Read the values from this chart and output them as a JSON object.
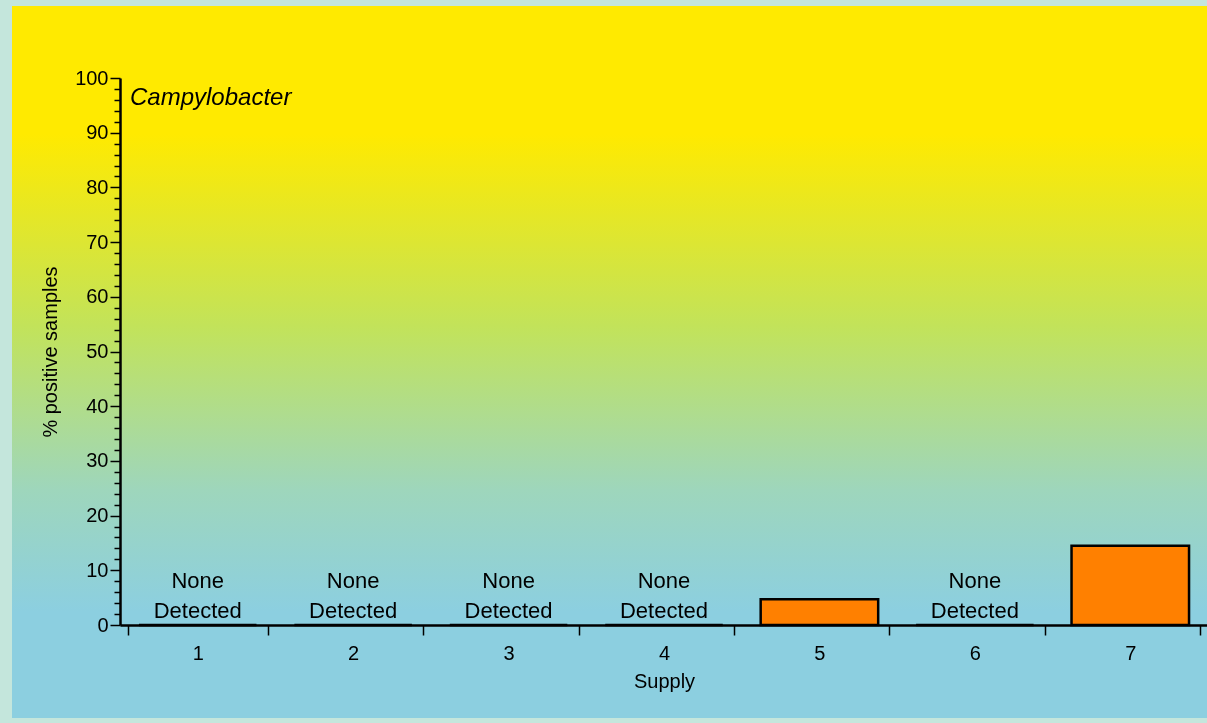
{
  "chart_data": {
    "type": "bar",
    "title": "Campylobacter",
    "xlabel": "Supply",
    "ylabel": "% positive samples",
    "categories": [
      "1",
      "2",
      "3",
      "4",
      "5",
      "6",
      "7"
    ],
    "values": [
      0,
      0,
      0,
      0,
      4.7,
      0,
      14.5
    ],
    "color": "#ff8000",
    "ylim": [
      0,
      100
    ],
    "yticks": [
      0,
      {
        "value": 2,
        "label": null
      },
      {
        "value": 4,
        "label": null
      },
      {
        "value": 6,
        "label": null
      },
      {
        "value": 8,
        "label": null
      },
      10,
      {
        "value": 12,
        "label": null
      },
      {
        "value": 14,
        "label": null
      },
      {
        "value": 16,
        "label": null
      },
      {
        "value": 18,
        "label": null
      },
      20,
      {
        "value": 22,
        "label": null
      },
      {
        "value": 24,
        "label": null
      },
      {
        "value": 26,
        "label": null
      },
      {
        "value": 28,
        "label": null
      },
      30,
      {
        "value": 32,
        "label": null
      },
      {
        "value": 34,
        "label": null
      },
      {
        "value": 36,
        "label": null
      },
      {
        "value": 38,
        "label": null
      },
      40,
      {
        "value": 42,
        "label": null
      },
      {
        "value": 44,
        "label": null
      },
      {
        "value": 46,
        "label": null
      },
      {
        "value": 48,
        "label": null
      },
      50,
      {
        "value": 52,
        "label": null
      },
      {
        "value": 54,
        "label": null
      },
      {
        "value": 56,
        "label": null
      },
      {
        "value": 58,
        "label": null
      },
      60,
      {
        "value": 62,
        "label": null
      },
      {
        "value": 64,
        "label": null
      },
      {
        "value": 66,
        "label": null
      },
      {
        "value": 68,
        "label": null
      },
      70,
      {
        "value": 72,
        "label": null
      },
      {
        "value": 74,
        "label": null
      },
      {
        "value": 76,
        "label": null
      },
      {
        "value": 78,
        "label": null
      },
      80,
      {
        "value": 82,
        "label": null
      },
      {
        "value": 84,
        "label": null
      },
      {
        "value": 86,
        "label": null
      },
      {
        "value": 88,
        "label": null
      },
      90,
      {
        "value": 92,
        "label": null
      },
      {
        "value": 94,
        "label": null
      },
      {
        "value": 96,
        "label": null
      },
      {
        "value": 98,
        "label": null
      },
      100
    ],
    "annotations": [
      {
        "text": "None Detected",
        "x": "1",
        "y": 0
      },
      {
        "text": "None Detected",
        "x": "2",
        "y": 0
      },
      {
        "text": "None Detected",
        "x": "3",
        "y": 0
      },
      {
        "text": "None Detected",
        "x": "4",
        "y": 0
      },
      {
        "text": "None Detected",
        "x": "6",
        "y": 0
      }
    ]
  }
}
